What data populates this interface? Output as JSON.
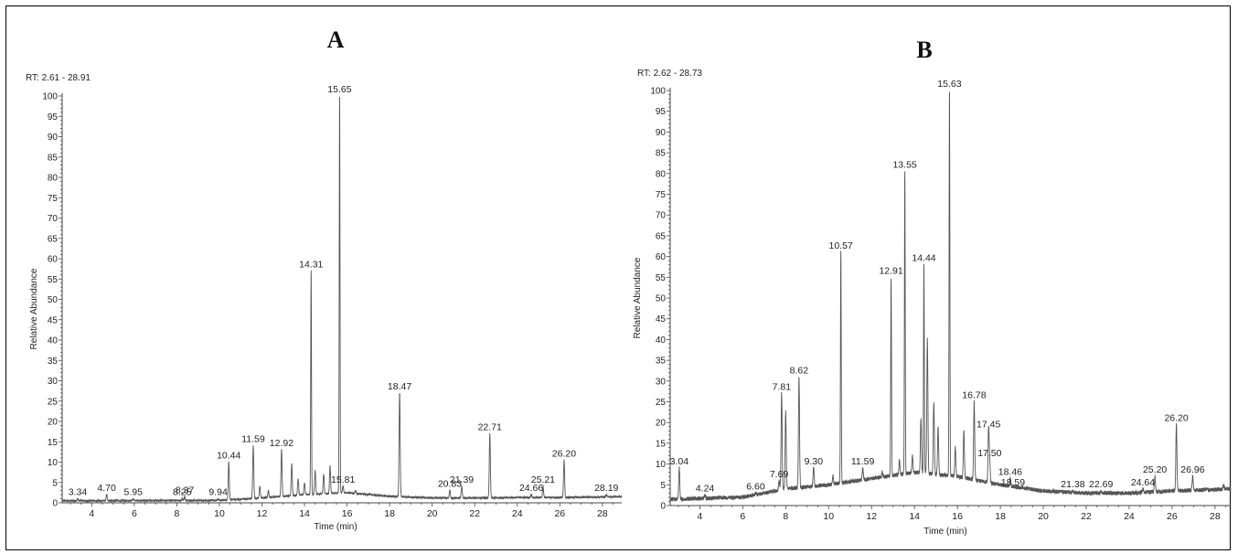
{
  "chart_data": [
    {
      "type": "line",
      "title": "A",
      "rt_range": "RT: 2.61 - 28.91",
      "xlabel": "Time (min)",
      "ylabel": "Relative Abundance",
      "xlim": [
        2.61,
        28.91
      ],
      "ylim": [
        0,
        100
      ],
      "xticks": [
        4,
        6,
        8,
        10,
        12,
        14,
        16,
        18,
        20,
        22,
        24,
        26,
        28
      ],
      "yticks": [
        0,
        5,
        10,
        15,
        20,
        25,
        30,
        35,
        40,
        45,
        50,
        55,
        60,
        65,
        70,
        75,
        80,
        85,
        90,
        95,
        100
      ],
      "baseline": [
        [
          2.61,
          0.5
        ],
        [
          10,
          0.6
        ],
        [
          12,
          1.2
        ],
        [
          14,
          2
        ],
        [
          16,
          2.5
        ],
        [
          18,
          1.6
        ],
        [
          20,
          1.2
        ],
        [
          22,
          1.2
        ],
        [
          24,
          1.3
        ],
        [
          26,
          1.3
        ],
        [
          28.91,
          1.5
        ]
      ],
      "peaks": [
        {
          "x": 3.34,
          "y": 1.0,
          "label": "3.34"
        },
        {
          "x": 4.7,
          "y": 2.0,
          "label": "4.70"
        },
        {
          "x": 5.95,
          "y": 1.0,
          "label": "5.95"
        },
        {
          "x": 8.25,
          "y": 1.0,
          "label": "8.25"
        },
        {
          "x": 8.37,
          "y": 1.5,
          "label": "8.37"
        },
        {
          "x": 9.94,
          "y": 1.0,
          "label": "9.94"
        },
        {
          "x": 10.44,
          "y": 10,
          "label": "10.44"
        },
        {
          "x": 11.59,
          "y": 14,
          "label": "11.59"
        },
        {
          "x": 11.9,
          "y": 4
        },
        {
          "x": 12.3,
          "y": 3
        },
        {
          "x": 12.92,
          "y": 13,
          "label": "12.92"
        },
        {
          "x": 13.4,
          "y": 9.5
        },
        {
          "x": 13.7,
          "y": 6
        },
        {
          "x": 14.0,
          "y": 5
        },
        {
          "x": 14.31,
          "y": 57,
          "label": "14.31"
        },
        {
          "x": 14.5,
          "y": 8
        },
        {
          "x": 14.9,
          "y": 7
        },
        {
          "x": 15.2,
          "y": 9
        },
        {
          "x": 15.65,
          "y": 100,
          "label": "15.65"
        },
        {
          "x": 15.81,
          "y": 4,
          "label": "15.81"
        },
        {
          "x": 16.4,
          "y": 3
        },
        {
          "x": 18.47,
          "y": 27,
          "label": "18.47"
        },
        {
          "x": 20.83,
          "y": 3,
          "label": "20.83"
        },
        {
          "x": 21.39,
          "y": 4,
          "label": "21.39"
        },
        {
          "x": 22.71,
          "y": 17,
          "label": "22.71"
        },
        {
          "x": 24.66,
          "y": 2,
          "label": "24.66"
        },
        {
          "x": 25.21,
          "y": 4,
          "label": "25.21"
        },
        {
          "x": 26.2,
          "y": 10.5,
          "label": "26.20"
        },
        {
          "x": 28.19,
          "y": 2,
          "label": "28.19"
        }
      ]
    },
    {
      "type": "line",
      "title": "B",
      "rt_range": "RT: 2.62 - 28.73",
      "xlabel": "Time (min)",
      "ylabel": "Relative Abundance",
      "xlim": [
        2.62,
        28.73
      ],
      "ylim": [
        0,
        100
      ],
      "xticks": [
        4,
        6,
        8,
        10,
        12,
        14,
        16,
        18,
        20,
        22,
        24,
        26,
        28
      ],
      "yticks": [
        0,
        5,
        10,
        15,
        20,
        25,
        30,
        35,
        40,
        45,
        50,
        55,
        60,
        65,
        70,
        75,
        80,
        85,
        90,
        95,
        100
      ],
      "baseline": [
        [
          2.62,
          1.5
        ],
        [
          6,
          2
        ],
        [
          8,
          4
        ],
        [
          10,
          5
        ],
        [
          12,
          6.5
        ],
        [
          14,
          8
        ],
        [
          16,
          7
        ],
        [
          18,
          5
        ],
        [
          20,
          3.5
        ],
        [
          22,
          3
        ],
        [
          24,
          3
        ],
        [
          26,
          3.5
        ],
        [
          28.73,
          4
        ]
      ],
      "peaks": [
        {
          "x": 3.04,
          "y": 9,
          "label": "3.04"
        },
        {
          "x": 4.24,
          "y": 2.5,
          "label": "4.24"
        },
        {
          "x": 6.6,
          "y": 3,
          "label": "6.60"
        },
        {
          "x": 7.69,
          "y": 6,
          "label": "7.69"
        },
        {
          "x": 7.81,
          "y": 27,
          "label": "7.81"
        },
        {
          "x": 8.0,
          "y": 22.5
        },
        {
          "x": 8.62,
          "y": 31,
          "label": "8.62"
        },
        {
          "x": 9.3,
          "y": 9,
          "label": "9.30"
        },
        {
          "x": 10.2,
          "y": 7
        },
        {
          "x": 10.57,
          "y": 61,
          "label": "10.57"
        },
        {
          "x": 11.2,
          "y": 6
        },
        {
          "x": 11.59,
          "y": 9,
          "label": "11.59"
        },
        {
          "x": 12.5,
          "y": 8
        },
        {
          "x": 12.91,
          "y": 55,
          "label": "12.91"
        },
        {
          "x": 13.3,
          "y": 11
        },
        {
          "x": 13.55,
          "y": 80.5,
          "label": "13.55"
        },
        {
          "x": 13.9,
          "y": 12
        },
        {
          "x": 14.3,
          "y": 21
        },
        {
          "x": 14.44,
          "y": 58,
          "label": "14.44"
        },
        {
          "x": 14.6,
          "y": 40
        },
        {
          "x": 14.9,
          "y": 25
        },
        {
          "x": 15.1,
          "y": 19
        },
        {
          "x": 15.63,
          "y": 100,
          "label": "15.63"
        },
        {
          "x": 15.9,
          "y": 14
        },
        {
          "x": 16.3,
          "y": 18
        },
        {
          "x": 16.78,
          "y": 25,
          "label": "16.78"
        },
        {
          "x": 17.45,
          "y": 18,
          "label": "17.45"
        },
        {
          "x": 17.5,
          "y": 11,
          "label": "17.50"
        },
        {
          "x": 18.46,
          "y": 6.5,
          "label": "18.46"
        },
        {
          "x": 18.59,
          "y": 4,
          "label": "18.59"
        },
        {
          "x": 21.38,
          "y": 3.5,
          "label": "21.38"
        },
        {
          "x": 22.69,
          "y": 3.5,
          "label": "22.69"
        },
        {
          "x": 24.64,
          "y": 4,
          "label": "24.64"
        },
        {
          "x": 25.2,
          "y": 7,
          "label": "25.20"
        },
        {
          "x": 26.2,
          "y": 19.5,
          "label": "26.20"
        },
        {
          "x": 26.96,
          "y": 7,
          "label": "26.96"
        },
        {
          "x": 28.4,
          "y": 5
        }
      ]
    }
  ]
}
